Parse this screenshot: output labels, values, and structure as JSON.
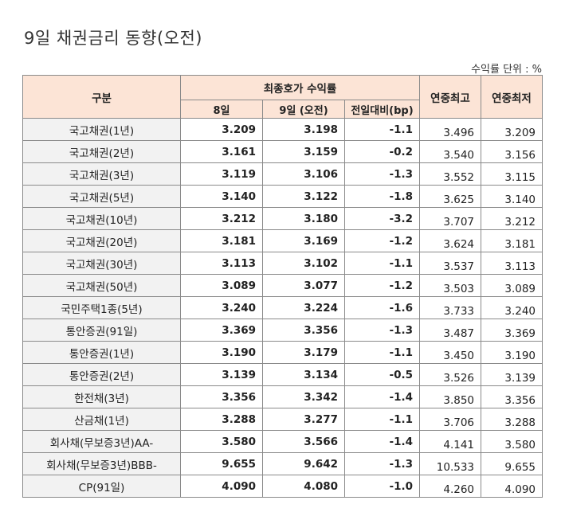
{
  "title": "9일 채권금리 동향(오전)",
  "unit_note": "수익률 단위 : %",
  "headers": {
    "category": "구분",
    "final_yield": "최종호가 수익률",
    "day8": "8일",
    "day9": "9일 (오전)",
    "change": "전일대비(bp)",
    "year_high": "연중최고",
    "year_low": "연중최저"
  },
  "rows": [
    {
      "name": "국고채권(1년)",
      "d8": "3.209",
      "d9": "3.198",
      "chg": "-1.1",
      "hi": "3.496",
      "lo": "3.209"
    },
    {
      "name": "국고채권(2년)",
      "d8": "3.161",
      "d9": "3.159",
      "chg": "-0.2",
      "hi": "3.540",
      "lo": "3.156"
    },
    {
      "name": "국고채권(3년)",
      "d8": "3.119",
      "d9": "3.106",
      "chg": "-1.3",
      "hi": "3.552",
      "lo": "3.115"
    },
    {
      "name": "국고채권(5년)",
      "d8": "3.140",
      "d9": "3.122",
      "chg": "-1.8",
      "hi": "3.625",
      "lo": "3.140"
    },
    {
      "name": "국고채권(10년)",
      "d8": "3.212",
      "d9": "3.180",
      "chg": "-3.2",
      "hi": "3.707",
      "lo": "3.212"
    },
    {
      "name": "국고채권(20년)",
      "d8": "3.181",
      "d9": "3.169",
      "chg": "-1.2",
      "hi": "3.624",
      "lo": "3.181"
    },
    {
      "name": "국고채권(30년)",
      "d8": "3.113",
      "d9": "3.102",
      "chg": "-1.1",
      "hi": "3.537",
      "lo": "3.113"
    },
    {
      "name": "국고채권(50년)",
      "d8": "3.089",
      "d9": "3.077",
      "chg": "-1.2",
      "hi": "3.503",
      "lo": "3.089"
    },
    {
      "name": "국민주택1종(5년)",
      "d8": "3.240",
      "d9": "3.224",
      "chg": "-1.6",
      "hi": "3.733",
      "lo": "3.240"
    },
    {
      "name": "통안증권(91일)",
      "d8": "3.369",
      "d9": "3.356",
      "chg": "-1.3",
      "hi": "3.487",
      "lo": "3.369"
    },
    {
      "name": "통안증권(1년)",
      "d8": "3.190",
      "d9": "3.179",
      "chg": "-1.1",
      "hi": "3.450",
      "lo": "3.190"
    },
    {
      "name": "통안증권(2년)",
      "d8": "3.139",
      "d9": "3.134",
      "chg": "-0.5",
      "hi": "3.526",
      "lo": "3.139"
    },
    {
      "name": "한전채(3년)",
      "d8": "3.356",
      "d9": "3.342",
      "chg": "-1.4",
      "hi": "3.850",
      "lo": "3.356"
    },
    {
      "name": "산금채(1년)",
      "d8": "3.288",
      "d9": "3.277",
      "chg": "-1.1",
      "hi": "3.706",
      "lo": "3.288"
    },
    {
      "name": "회사채(무보증3년)AA-",
      "d8": "3.580",
      "d9": "3.566",
      "chg": "-1.4",
      "hi": "4.141",
      "lo": "3.580"
    },
    {
      "name": "회사채(무보증3년)BBB-",
      "d8": "9.655",
      "d9": "9.642",
      "chg": "-1.3",
      "hi": "10.533",
      "lo": "9.655"
    },
    {
      "name": "CP(91일)",
      "d8": "4.090",
      "d9": "4.080",
      "chg": "-1.0",
      "hi": "4.260",
      "lo": "4.090"
    }
  ]
}
